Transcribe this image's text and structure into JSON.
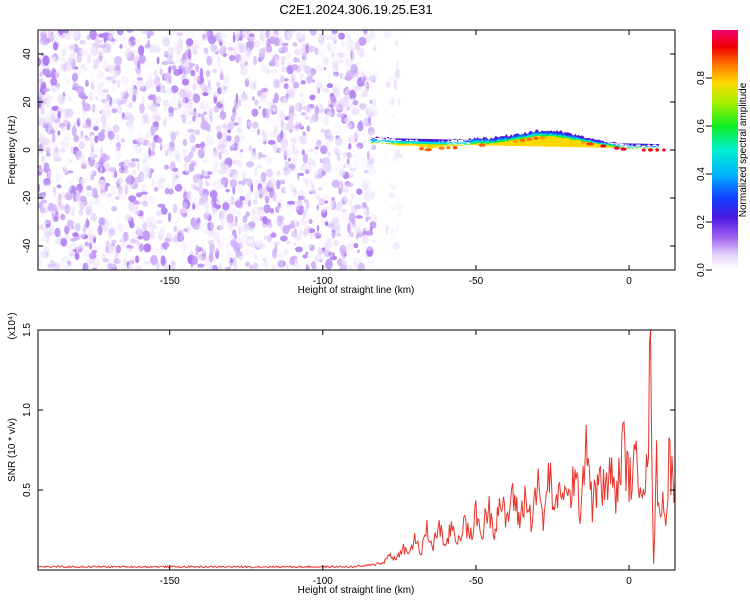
{
  "title": "C2E1.2024.306.19.25.E31",
  "colors": {
    "snr_line": "#e8352c",
    "noise_violet": "#7a22e0",
    "signal_red": "#e4152a",
    "frame": "#000000"
  },
  "chart_data": [
    {
      "type": "heatmap",
      "title": "C2E1.2024.306.19.25.E31",
      "xlabel": "Height of straight line (km)",
      "ylabel": "Frequency (Hz)",
      "xlim": [
        -193,
        15
      ],
      "ylim": [
        -50,
        50
      ],
      "x_ticks": [
        -150,
        -100,
        -50,
        0
      ],
      "y_ticks": [
        -40,
        -20,
        0,
        20,
        40
      ],
      "x_tick_labels": [
        "-150",
        "-100",
        "-50",
        "0"
      ],
      "y_tick_labels": [
        "-40",
        "-20",
        "0",
        "20",
        "40"
      ],
      "colorbar": {
        "label": "Normalized spectral amplitude",
        "range": [
          0,
          1
        ],
        "ticks": [
          0.0,
          0.2,
          0.4,
          0.6,
          0.8
        ],
        "tick_labels": [
          "0.0",
          "0.2",
          "0.4",
          "0.6",
          "0.8"
        ],
        "colormap": "rainbow (white-violet-blue-cyan-green-yellow-red-magenta)"
      },
      "regions": [
        {
          "kind": "broadband noise",
          "x_range": [
            -193,
            -83
          ],
          "freq_range": [
            -50,
            50
          ],
          "amplitude_range": [
            0.0,
            0.12
          ]
        },
        {
          "kind": "sparse noise",
          "x_range": [
            -80,
            -74
          ],
          "freq_range": [
            -50,
            50
          ],
          "amplitude_range": [
            0.0,
            0.05
          ]
        },
        {
          "kind": "narrowband signal",
          "x_range": [
            -85,
            15
          ],
          "amplitude_range": [
            0.2,
            1.0
          ]
        }
      ],
      "signal_ridge": {
        "x": [
          -85,
          -80,
          -75,
          -70,
          -65,
          -60,
          -55,
          -50,
          -45,
          -40,
          -35,
          -30,
          -25,
          -20,
          -15,
          -10,
          -5,
          0,
          5,
          10,
          15
        ],
        "center_freq": [
          2,
          2,
          1,
          1,
          0,
          1,
          1,
          2,
          2,
          3,
          4,
          5,
          5,
          4,
          3,
          2,
          1,
          0,
          0,
          0,
          0
        ],
        "half_width": [
          3,
          3,
          3,
          3,
          2.5,
          3,
          3,
          3,
          3,
          3,
          3,
          3,
          3,
          3,
          2.5,
          2,
          2,
          2,
          2,
          2
        ]
      }
    },
    {
      "type": "line",
      "xlabel": "Height of straight line (km)",
      "ylabel": "SNR (10 * v/v)",
      "y_multiplier_label": "(x10⁴)",
      "xlim": [
        -193,
        15
      ],
      "ylim": [
        0,
        1.5
      ],
      "x_ticks": [
        -150,
        -100,
        -50,
        0
      ],
      "y_ticks": [
        0.5,
        1.0,
        1.5
      ],
      "x_tick_labels": [
        "-150",
        "-100",
        "-50",
        "0"
      ],
      "y_tick_labels": [
        "0.5",
        "1.0",
        "1.5"
      ],
      "series": [
        {
          "values_unit": "x10^4",
          "x": [
            -193,
            -180,
            -170,
            -160,
            -150,
            -140,
            -130,
            -120,
            -110,
            -100,
            -90,
            -84,
            -80,
            -78,
            -76,
            -74,
            -72,
            -70,
            -68,
            -66,
            -64,
            -62,
            -60,
            -58,
            -56,
            -54,
            -52,
            -50,
            -48,
            -46,
            -44,
            -42,
            -40,
            -38,
            -36,
            -34,
            -32,
            -30,
            -28,
            -26,
            -24,
            -22,
            -20,
            -18,
            -16,
            -14,
            -12,
            -10,
            -8,
            -6,
            -4,
            -2,
            0,
            2,
            4,
            6,
            7,
            8,
            9,
            10,
            11,
            12,
            13,
            14,
            15
          ],
          "y": [
            0.02,
            0.02,
            0.02,
            0.02,
            0.02,
            0.02,
            0.02,
            0.02,
            0.02,
            0.02,
            0.02,
            0.03,
            0.05,
            0.1,
            0.06,
            0.15,
            0.09,
            0.2,
            0.1,
            0.25,
            0.14,
            0.3,
            0.12,
            0.28,
            0.18,
            0.3,
            0.2,
            0.35,
            0.22,
            0.4,
            0.26,
            0.45,
            0.28,
            0.5,
            0.3,
            0.45,
            0.32,
            0.55,
            0.3,
            0.6,
            0.35,
            0.55,
            0.4,
            0.6,
            0.38,
            0.85,
            0.4,
            0.55,
            0.5,
            0.6,
            0.45,
            0.8,
            0.55,
            0.65,
            0.6,
            0.58,
            1.5,
            0.05,
            0.65,
            0.3,
            0.55,
            0.25,
            0.7,
            0.6,
            0.55
          ]
        }
      ]
    }
  ]
}
